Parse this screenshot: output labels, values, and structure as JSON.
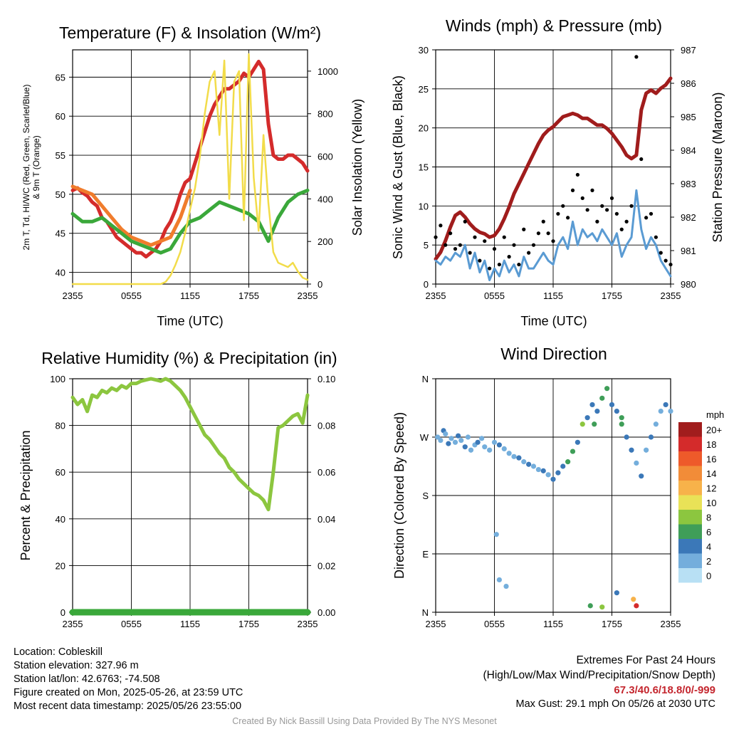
{
  "colors": {
    "temperature": "#d42b2b",
    "heat_index_wind_chill": "#f07c2c",
    "dewpoint": "#3aa83a",
    "wet_bulb": "#4a90c8",
    "insolation": "#f2dc4a",
    "wind_speed": "#5a9bd3",
    "wind_gust": "#000000",
    "pressure": "#a01c1c",
    "humidity": "#8cc63f",
    "precipitation": "#3aa83a"
  },
  "x_ticks": [
    "2355",
    "0555",
    "1155",
    "1755",
    "2355"
  ],
  "panels": {
    "temperature": {
      "title": "Temperature (F) & Insolation (W/m²)",
      "xlabel": "Time (UTC)",
      "ylabel_left_line1": "2m T, Td, HI/WC (Red, Green, Scarlet/Blue)",
      "ylabel_left_line2": "& 9m T (Orange)",
      "ylabel_right": "Solar Insolation (Yellow)"
    },
    "winds": {
      "title": "Winds (mph) & Pressure (mb)",
      "xlabel": "Time (UTC)",
      "ylabel_left": "Sonic Wind & Gust (Blue, Black)",
      "ylabel_right": "Station Pressure (Maroon)"
    },
    "humidity": {
      "title": "Relative Humidity (%) & Precipitation (in)",
      "ylabel_left": "Percent & Precipitation"
    },
    "direction": {
      "title": "Wind Direction",
      "ylabel_left": "Direction (Colored By Speed)",
      "legend_title": "mph",
      "legend_labels": [
        "20+",
        "18",
        "16",
        "14",
        "12",
        "10",
        "8",
        "6",
        "4",
        "2",
        "0"
      ],
      "legend_colors": [
        "#a11d1d",
        "#d42b2b",
        "#ee5a2a",
        "#f28c38",
        "#f7b24a",
        "#e9e257",
        "#8cc63f",
        "#3f9e58",
        "#3b78b8",
        "#74aedc",
        "#b8e0f4"
      ]
    }
  },
  "chart_data": [
    {
      "type": "line",
      "title": "Temperature (F) & Insolation (W/m²)",
      "xlabel": "Time (UTC)",
      "ylabel": "2m T, Td, HI/WC (Red, Green, Scarlet/Blue) & 9m T (Orange)",
      "y2label": "Solar Insolation (Yellow)",
      "x_ticks": [
        "2355",
        "0555",
        "1155",
        "1755",
        "2355"
      ],
      "xlim_hours": [
        0,
        24
      ],
      "ylim": [
        38.5,
        68.5
      ],
      "y_ticks": [
        40,
        45,
        50,
        55,
        60,
        65
      ],
      "y2lim": [
        0,
        1100
      ],
      "y2_ticks": [
        0,
        200,
        400,
        600,
        800,
        1000
      ],
      "grid": true,
      "series": [
        {
          "name": "2m T",
          "color": "#d42b2b",
          "x": [
            0,
            0.5,
            1,
            1.5,
            2,
            2.5,
            3,
            3.5,
            4,
            4.5,
            5,
            5.5,
            6,
            6.5,
            7,
            7.5,
            8,
            8.5,
            9,
            9.5,
            10,
            10.5,
            11,
            11.5,
            12,
            12.5,
            13,
            13.5,
            14,
            14.5,
            15,
            15.5,
            16,
            16.5,
            17,
            17.5,
            18,
            18.5,
            19,
            19.5,
            20,
            20.5,
            21,
            21.5,
            22,
            22.5,
            23,
            23.5,
            24
          ],
          "values": [
            50.5,
            50.8,
            50.2,
            49.8,
            49.0,
            48.5,
            47.0,
            46.5,
            45.5,
            44.5,
            44.0,
            43.5,
            43.0,
            42.5,
            42.5,
            42.0,
            42.5,
            43.0,
            44.0,
            45.5,
            46.5,
            48.0,
            50.0,
            51.5,
            52.0,
            54.0,
            56.0,
            58.0,
            60.0,
            61.5,
            62.5,
            63.5,
            63.5,
            64.0,
            64.5,
            65.5,
            65.0,
            66.0,
            67.0,
            66.0,
            59.0,
            55.0,
            54.5,
            54.5,
            55.0,
            55.0,
            54.5,
            54.0,
            53.0
          ]
        },
        {
          "name": "9m T",
          "color": "#f07c2c",
          "x": [
            0,
            1,
            2,
            3,
            4,
            5,
            6,
            7,
            8,
            9,
            10,
            11,
            12
          ],
          "values": [
            51.0,
            50.5,
            50.0,
            48.5,
            47.0,
            45.5,
            44.5,
            44.0,
            43.5,
            44.0,
            44.5,
            47.0,
            50.5
          ]
        },
        {
          "name": "Td",
          "color": "#3aa83a",
          "x": [
            0,
            1,
            2,
            3,
            4,
            5,
            6,
            7,
            8,
            9,
            10,
            11,
            12,
            13,
            14,
            15,
            16,
            17,
            18,
            19,
            20,
            21,
            22,
            23,
            24
          ],
          "values": [
            47.5,
            46.5,
            46.5,
            47.0,
            46.0,
            45.0,
            44.0,
            43.5,
            43.0,
            42.5,
            43.0,
            45.0,
            46.5,
            47.0,
            48.0,
            49.0,
            48.5,
            48.0,
            47.5,
            46.5,
            44.0,
            47.0,
            49.0,
            50.0,
            50.5
          ]
        },
        {
          "name": "Solar Insolation",
          "color": "#f2dc4a",
          "axis": "right",
          "x": [
            0,
            1,
            2,
            3,
            4,
            5,
            6,
            7,
            8,
            9,
            9.5,
            10,
            10.5,
            11,
            11.5,
            12,
            12.5,
            13,
            13.5,
            14,
            14.5,
            15,
            15.5,
            16,
            16.5,
            17,
            17.5,
            18,
            18.5,
            19,
            19.5,
            20,
            20.5,
            21,
            21.5,
            22,
            22.5,
            23,
            23.5,
            24
          ],
          "values": [
            0,
            0,
            0,
            0,
            0,
            0,
            0,
            0,
            0,
            0,
            10,
            40,
            90,
            150,
            240,
            350,
            450,
            600,
            800,
            950,
            1000,
            700,
            1050,
            400,
            950,
            1000,
            300,
            1080,
            500,
            250,
            700,
            380,
            150,
            100,
            90,
            80,
            100,
            60,
            30,
            20
          ]
        }
      ]
    },
    {
      "type": "line",
      "title": "Winds (mph) & Pressure (mb)",
      "xlabel": "Time (UTC)",
      "ylabel": "Sonic Wind & Gust (Blue, Black)",
      "y2label": "Station Pressure (Maroon)",
      "x_ticks": [
        "2355",
        "0555",
        "1155",
        "1755",
        "2355"
      ],
      "xlim_hours": [
        0,
        24
      ],
      "ylim": [
        0,
        30
      ],
      "y_ticks": [
        0,
        5,
        10,
        15,
        20,
        25,
        30
      ],
      "y2lim": [
        980,
        987
      ],
      "y2_ticks": [
        980,
        981,
        982,
        983,
        984,
        985,
        986,
        987
      ],
      "grid": true,
      "series": [
        {
          "name": "Station Pressure",
          "color": "#a01c1c",
          "axis": "right",
          "x": [
            0,
            0.5,
            1,
            1.5,
            2,
            2.5,
            3,
            3.5,
            4,
            4.5,
            5,
            5.5,
            6,
            6.5,
            7,
            7.5,
            8,
            8.5,
            9,
            9.5,
            10,
            10.5,
            11,
            11.5,
            12,
            12.5,
            13,
            13.5,
            14,
            14.5,
            15,
            15.5,
            16,
            16.5,
            17,
            17.5,
            18,
            18.5,
            19,
            19.5,
            20,
            20.5,
            21,
            21.5,
            22,
            22.5,
            23,
            23.5,
            24
          ],
          "values": [
            980.75,
            980.95,
            981.3,
            981.7,
            982.05,
            982.15,
            982.0,
            981.8,
            981.65,
            981.55,
            981.5,
            981.4,
            981.45,
            981.65,
            981.95,
            982.3,
            982.7,
            983.0,
            983.3,
            983.6,
            983.9,
            984.2,
            984.45,
            984.6,
            984.7,
            984.85,
            985.0,
            985.05,
            985.1,
            985.05,
            984.95,
            984.95,
            984.85,
            984.75,
            984.75,
            984.65,
            984.5,
            984.3,
            984.1,
            983.85,
            983.75,
            983.85,
            985.2,
            985.7,
            985.8,
            985.7,
            985.85,
            985.95,
            986.15
          ]
        },
        {
          "name": "Sonic Wind",
          "color": "#5a9bd3",
          "x": [
            0,
            0.5,
            1,
            1.5,
            2,
            2.5,
            3,
            3.5,
            4,
            4.5,
            5,
            5.5,
            6,
            6.5,
            7,
            7.5,
            8,
            8.5,
            9,
            9.5,
            10,
            10.5,
            11,
            11.5,
            12,
            12.5,
            13,
            13.5,
            14,
            14.5,
            15,
            15.5,
            16,
            16.5,
            17,
            17.5,
            18,
            18.5,
            19,
            19.5,
            20,
            20.5,
            21,
            21.5,
            22,
            22.5,
            23,
            23.5,
            24
          ],
          "values": [
            3,
            2.5,
            3.5,
            3,
            4,
            3.5,
            5,
            2,
            4,
            1.5,
            3,
            0.5,
            2,
            1,
            3,
            1.5,
            2.5,
            1,
            3.5,
            2,
            2,
            3,
            4,
            3,
            2.5,
            5,
            6,
            4.5,
            8,
            5,
            7,
            6,
            6.5,
            5.5,
            7,
            6,
            5,
            6.5,
            3.5,
            5,
            6,
            12,
            7,
            4.5,
            6,
            5,
            3,
            2,
            1
          ]
        },
        {
          "name": "Gust",
          "color": "#000000",
          "x": [
            0,
            0.5,
            1,
            1.5,
            2,
            2.5,
            3,
            3.5,
            4,
            4.5,
            5,
            5.5,
            6,
            6.5,
            7,
            7.5,
            8,
            8.5,
            9,
            9.5,
            10,
            10.5,
            11,
            11.5,
            12,
            12.5,
            13,
            13.5,
            14,
            14.5,
            15,
            15.5,
            16,
            16.5,
            17,
            17.5,
            18,
            18.5,
            19,
            19.5,
            20,
            20.5,
            21,
            21.5,
            22,
            22.5,
            23,
            23.5,
            24
          ],
          "values": [
            6,
            7.5,
            5,
            6.5,
            4.5,
            5,
            8,
            4,
            6,
            3,
            5.5,
            2,
            4.5,
            2.5,
            6,
            3.5,
            5,
            2.5,
            7,
            4,
            5,
            6.5,
            8,
            6.5,
            5.5,
            9,
            10,
            8.5,
            12,
            14,
            11,
            9.5,
            12,
            8,
            10,
            9.5,
            11,
            9,
            7,
            8,
            10,
            29.1,
            16,
            8.5,
            9,
            6,
            4,
            3,
            2.5
          ]
        }
      ]
    },
    {
      "type": "line",
      "title": "Relative Humidity (%) & Precipitation (in)",
      "xlabel": "",
      "ylabel": "Percent & Precipitation",
      "x_ticks": [
        "2355",
        "0555",
        "1155",
        "1755",
        "2355"
      ],
      "xlim_hours": [
        0,
        24
      ],
      "ylim": [
        0,
        100
      ],
      "y_ticks": [
        0,
        20,
        40,
        60,
        80,
        100
      ],
      "y2lim": [
        0,
        0.1
      ],
      "y2_ticks": [
        "0.00",
        "0.02",
        "0.04",
        "0.06",
        "0.08",
        "0.10"
      ],
      "grid": true,
      "series": [
        {
          "name": "Relative Humidity",
          "color": "#8cc63f",
          "x": [
            0,
            0.5,
            1,
            1.5,
            2,
            2.5,
            3,
            3.5,
            4,
            4.5,
            5,
            5.5,
            6,
            6.5,
            7,
            7.5,
            8,
            8.5,
            9,
            9.5,
            10,
            10.5,
            11,
            11.5,
            12,
            12.5,
            13,
            13.5,
            14,
            14.5,
            15,
            15.5,
            16,
            16.5,
            17,
            17.5,
            18,
            18.5,
            19,
            19.5,
            20,
            20.5,
            21,
            21.5,
            22,
            22.5,
            23,
            23.5,
            24
          ],
          "values": [
            92,
            89,
            91,
            86,
            93,
            92,
            95,
            94,
            96,
            95,
            97,
            96,
            98,
            98,
            99,
            99.5,
            100,
            99.5,
            99,
            100,
            99,
            97,
            95,
            92,
            88,
            84,
            80,
            76,
            74,
            71,
            68,
            66,
            62,
            60,
            57,
            55,
            53,
            51,
            50,
            48,
            44,
            60,
            79,
            80,
            82,
            84,
            85,
            81,
            93
          ]
        },
        {
          "name": "Precipitation",
          "color": "#3aa83a",
          "axis": "right",
          "x": [
            0,
            24
          ],
          "values": [
            0.0,
            0.0
          ]
        }
      ]
    },
    {
      "type": "scatter",
      "title": "Wind Direction",
      "ylabel": "Direction (Colored By Speed)",
      "x_ticks": [
        "2355",
        "0555",
        "1155",
        "1755",
        "2355"
      ],
      "xlim_hours": [
        0,
        24
      ],
      "y_ticks": [
        "N",
        "E",
        "S",
        "W",
        "N"
      ],
      "ylim_degrees": [
        0,
        360
      ],
      "grid": true,
      "legend": {
        "title": "mph",
        "labels": [
          "20+",
          "18",
          "16",
          "14",
          "12",
          "10",
          "8",
          "6",
          "4",
          "2",
          "0"
        ]
      },
      "x": [
        0.2,
        0.5,
        0.8,
        1.0,
        1.3,
        1.6,
        2.0,
        2.3,
        2.6,
        3.0,
        3.3,
        3.6,
        4.0,
        4.3,
        4.7,
        5.0,
        5.5,
        6.0,
        6.5,
        7.0,
        7.5,
        8.0,
        8.5,
        9.0,
        9.5,
        10.0,
        10.5,
        11.0,
        11.5,
        12.0,
        12.5,
        13.0,
        13.5,
        14.0,
        14.5,
        15.0,
        15.5,
        16.0,
        16.5,
        17.0,
        17.5,
        18.0,
        18.5,
        19.0,
        19.5,
        20.0,
        20.5,
        21.0,
        21.5,
        22.0,
        22.5,
        23.0,
        23.5,
        24.0,
        6.5,
        7.2,
        15.8,
        17.0,
        18.5,
        20.2,
        20.5,
        6.2,
        16.2,
        19.0
      ],
      "values": [
        270,
        265,
        280,
        275,
        260,
        268,
        262,
        272,
        265,
        255,
        270,
        250,
        258,
        262,
        268,
        255,
        250,
        262,
        258,
        252,
        245,
        240,
        238,
        232,
        228,
        225,
        220,
        218,
        212,
        205,
        215,
        225,
        232,
        248,
        262,
        290,
        300,
        320,
        310,
        330,
        345,
        320,
        310,
        290,
        270,
        250,
        230,
        210,
        250,
        270,
        290,
        310,
        320,
        310,
        50,
        40,
        10,
        8,
        30,
        20,
        10,
        120,
        290,
        300
      ],
      "speeds": [
        2,
        2,
        3,
        2,
        3,
        2,
        2,
        3,
        2,
        3,
        2,
        1,
        2,
        3,
        2,
        2,
        1,
        2,
        3,
        1,
        2,
        2,
        3,
        2,
        3,
        2,
        2,
        3,
        2,
        3,
        4,
        3,
        5,
        6,
        4,
        7,
        4,
        3,
        4,
        6,
        5,
        4,
        3,
        5,
        4,
        3,
        2,
        3,
        2,
        3,
        2,
        2,
        3,
        2,
        2,
        1,
        6,
        7,
        4,
        12,
        18,
        1,
        6,
        5
      ]
    }
  ],
  "footer": {
    "location": "Location: Cobleskill",
    "elevation": "Station elevation: 327.96 m",
    "latlon": "Station lat/lon: 42.6763; -74.508",
    "created": "Figure created on Mon, 2025-05-26, at 23:59 UTC",
    "recent": "Most recent data timestamp: 2025/05/26 23:55:00",
    "extremes_title": "Extremes For Past 24 Hours",
    "extremes_sub": "(High/Low/Max Wind/Precipitation/Snow Depth)",
    "extremes_values": "67.3/40.6/18.8/0/-999",
    "max_gust": "Max Gust: 29.1 mph On 05/26 at 2030 UTC",
    "credit": "Created By Nick Bassill Using Data Provided By The NYS Mesonet"
  }
}
